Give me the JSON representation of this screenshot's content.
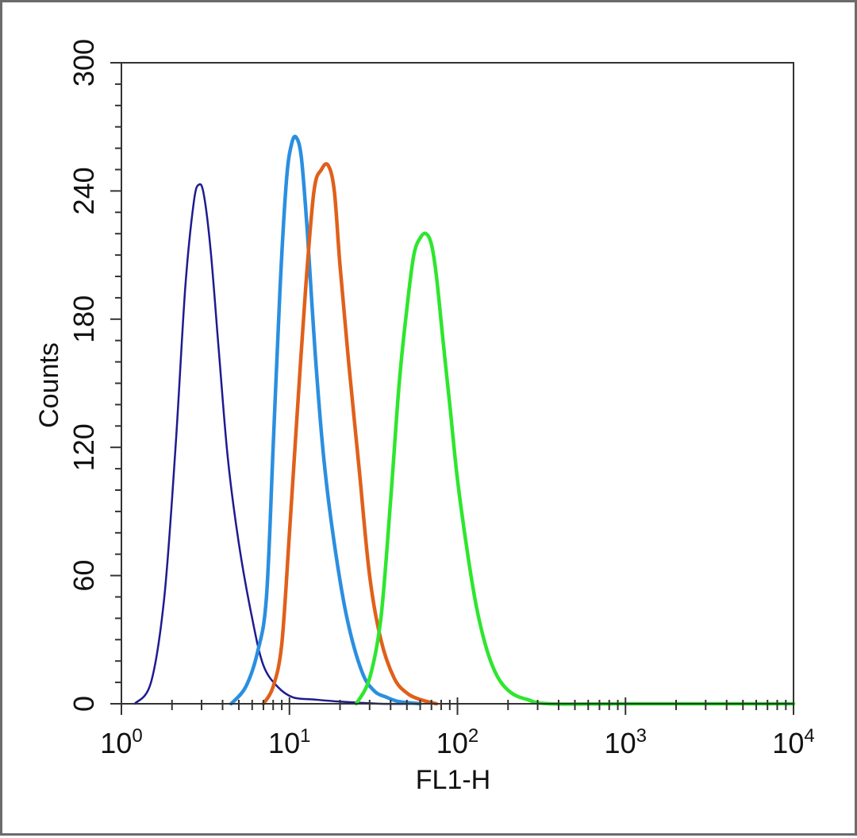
{
  "chart_data": {
    "type": "line",
    "title": "",
    "xlabel": "FL1-H",
    "ylabel": "Counts",
    "x_scale": "log",
    "xlim": [
      1,
      10000
    ],
    "ylim": [
      0,
      300
    ],
    "grid": false,
    "x_ticks": [
      {
        "base": "10",
        "exp": "0",
        "value": 1
      },
      {
        "base": "10",
        "exp": "1",
        "value": 10
      },
      {
        "base": "10",
        "exp": "2",
        "value": 100
      },
      {
        "base": "10",
        "exp": "3",
        "value": 1000
      },
      {
        "base": "10",
        "exp": "4",
        "value": 10000
      }
    ],
    "y_ticks": [
      "0",
      "60",
      "120",
      "180",
      "240",
      "300"
    ],
    "series": [
      {
        "color": "#1e1b8f",
        "stroke": 2.5,
        "x": [
          1.2,
          1.5,
          1.8,
          2.1,
          2.4,
          2.7,
          2.9,
          3.1,
          3.4,
          3.8,
          4.3,
          5.0,
          6.0,
          7.0,
          8.5,
          10.5,
          14,
          20,
          35,
          60
        ],
        "y": [
          0,
          10,
          50,
          120,
          195,
          235,
          243,
          238,
          212,
          165,
          115,
          75,
          40,
          18,
          8,
          3,
          2,
          1,
          0,
          0
        ]
      },
      {
        "color": "#2a8fe0",
        "stroke": 4.5,
        "x": [
          4.5,
          5.5,
          6.5,
          7.3,
          8.0,
          8.8,
          9.6,
          10.3,
          11.0,
          11.8,
          12.8,
          14.2,
          16,
          18.5,
          22,
          27,
          32,
          38,
          45,
          60
        ],
        "y": [
          0,
          8,
          25,
          50,
          120,
          195,
          245,
          262,
          265,
          255,
          220,
          165,
          115,
          75,
          40,
          15,
          6,
          3,
          1,
          0
        ]
      },
      {
        "color": "#e0601a",
        "stroke": 4.5,
        "x": [
          7.0,
          8.0,
          9.0,
          10.0,
          11.0,
          12.5,
          14.0,
          15.5,
          17.0,
          18.5,
          20,
          22.5,
          26,
          30,
          35,
          42,
          50,
          60,
          75
        ],
        "y": [
          0,
          8,
          28,
          80,
          130,
          195,
          240,
          250,
          252,
          240,
          205,
          160,
          110,
          60,
          30,
          12,
          5,
          2,
          0
        ]
      },
      {
        "color": "#2ee62e",
        "stroke": 4.5,
        "x": [
          25,
          30,
          35,
          40,
          45,
          50,
          55,
          60,
          65,
          70,
          75,
          82,
          90,
          100,
          115,
          130,
          150,
          175,
          210,
          260,
          350,
          1000,
          10000
        ],
        "y": [
          0,
          12,
          40,
          95,
          150,
          185,
          210,
          218,
          220,
          215,
          200,
          170,
          140,
          105,
          70,
          45,
          25,
          12,
          5,
          2,
          0,
          0,
          0
        ]
      }
    ]
  }
}
